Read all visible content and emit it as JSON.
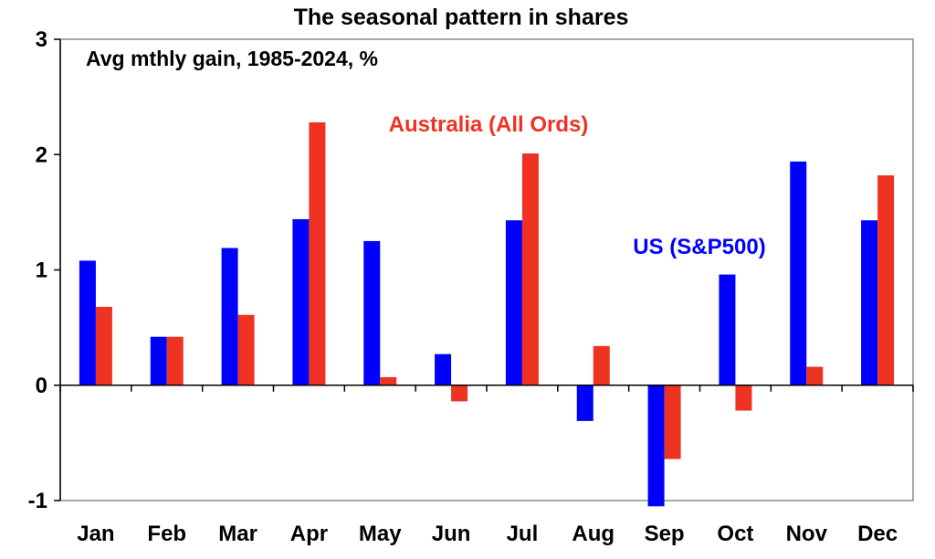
{
  "chart_data": {
    "type": "bar",
    "title": "The seasonal pattern in shares",
    "subtitle": "Avg mthly gain, 1985-2024, %",
    "categories": [
      "Jan",
      "Feb",
      "Mar",
      "Apr",
      "May",
      "Jun",
      "Jul",
      "Aug",
      "Sep",
      "Oct",
      "Nov",
      "Dec"
    ],
    "series": [
      {
        "name": "US (S&P500)",
        "color": "#0000ff",
        "values": [
          1.08,
          0.42,
          1.19,
          1.44,
          1.25,
          0.27,
          1.43,
          -0.31,
          -1.05,
          0.96,
          1.94,
          1.43
        ]
      },
      {
        "name": "Australia (All Ords)",
        "color": "#ef3322",
        "values": [
          0.68,
          0.42,
          0.61,
          2.28,
          0.07,
          -0.14,
          2.01,
          0.34,
          -0.64,
          -0.22,
          0.16,
          1.82
        ]
      }
    ],
    "ylim": [
      -1,
      3
    ],
    "yticks": [
      "-1",
      "0",
      "1",
      "2",
      "3"
    ],
    "grid": false,
    "legend": "inline labels"
  }
}
